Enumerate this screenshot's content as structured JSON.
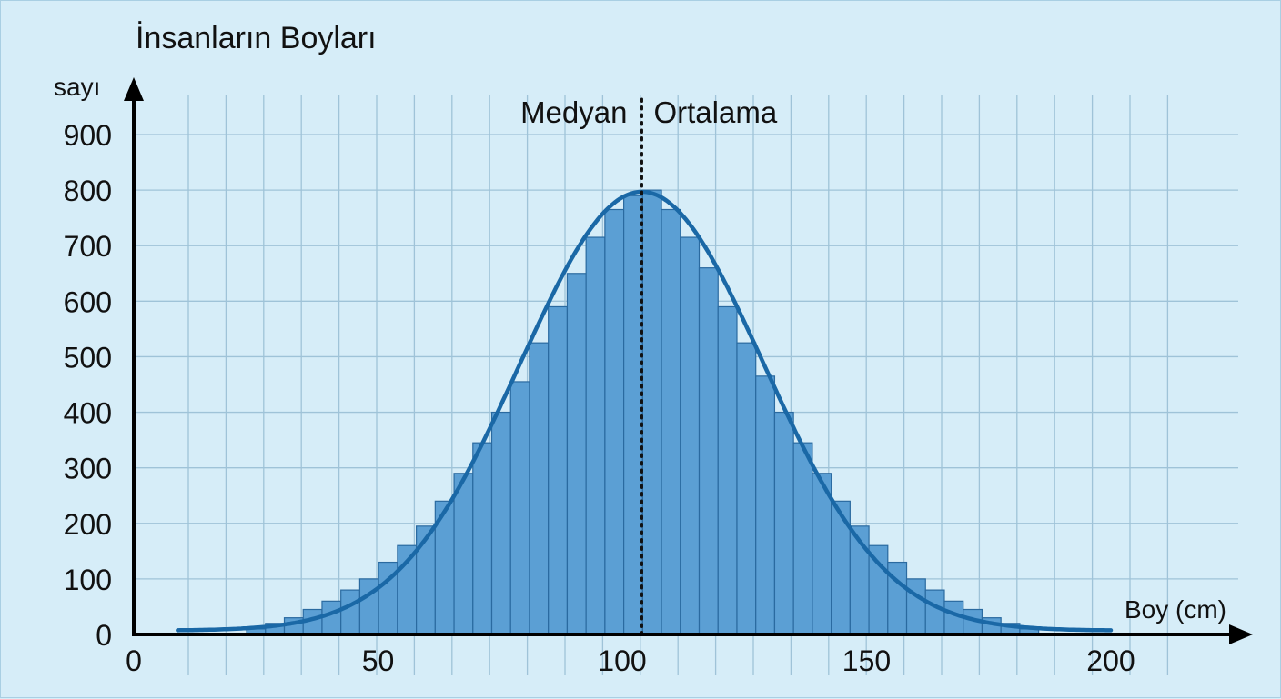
{
  "chart_data": {
    "type": "bar",
    "title": "İnsanların Boyları",
    "xlabel": "Boy (cm)",
    "ylabel": "sayı",
    "xlim": [
      0,
      220
    ],
    "ylim": [
      0,
      950
    ],
    "x_ticks": [
      0,
      50,
      100,
      150,
      200
    ],
    "y_ticks": [
      0,
      100,
      200,
      300,
      400,
      500,
      600,
      700,
      800,
      900
    ],
    "grid": true,
    "bin_start": 23.1,
    "bin_width": 3.86,
    "values": [
      10,
      20,
      30,
      45,
      60,
      80,
      100,
      130,
      160,
      195,
      240,
      290,
      345,
      400,
      455,
      525,
      590,
      650,
      715,
      765,
      790,
      800,
      765,
      715,
      660,
      590,
      525,
      465,
      400,
      345,
      290,
      240,
      195,
      160,
      130,
      100,
      80,
      60,
      45,
      30,
      20,
      10
    ],
    "curve": {
      "type": "normal",
      "mean": 104,
      "peak": 790,
      "sd": 25,
      "x_range": [
        9,
        200
      ]
    },
    "annotations": [
      {
        "type": "vline",
        "x": 104,
        "style": "dotted",
        "label_left": "Medyan",
        "label_right": "Ortalama"
      }
    ],
    "colors": {
      "bar": "#5b9fd4",
      "bar_edge": "#2a6aa0",
      "curve": "#1a68a6",
      "grid": "#9fc3d8",
      "background": "#d6edf8"
    }
  }
}
